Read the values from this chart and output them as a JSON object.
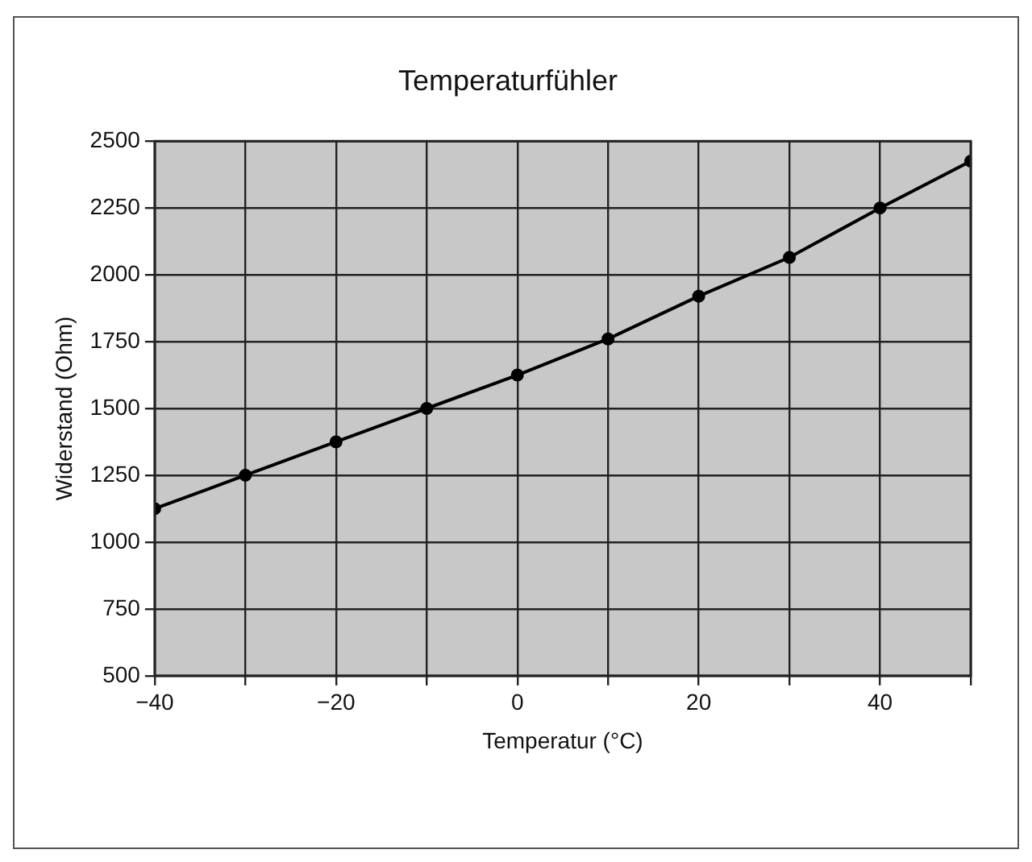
{
  "chart_data": {
    "type": "line",
    "title": "Temperaturfühler",
    "xlabel": "Temperatur (°C)",
    "ylabel": "Widerstand (Ohm)",
    "x": [
      -40,
      -30,
      -20,
      -10,
      0,
      10,
      20,
      30,
      40,
      50
    ],
    "series": [
      {
        "color": "#000000",
        "values": [
          1125,
          1250,
          1375,
          1500,
          1625,
          1760,
          1920,
          2065,
          2250,
          2425
        ]
      }
    ],
    "xlim": [
      -40,
      50
    ],
    "xticks": [
      -40,
      {
        "value": -30,
        "label": null
      },
      -20,
      {
        "value": -10,
        "label": null
      },
      0,
      {
        "value": 10,
        "label": null
      },
      20,
      {
        "value": 30,
        "label": null
      },
      40,
      {
        "value": 50,
        "label": null
      }
    ],
    "ylim": [
      500,
      2500
    ],
    "yticks": [
      500,
      750,
      1000,
      1250,
      1500,
      1750,
      2000,
      2250,
      2500
    ],
    "grid": true,
    "legend": false,
    "marker": "circle",
    "line_style": "solid"
  }
}
